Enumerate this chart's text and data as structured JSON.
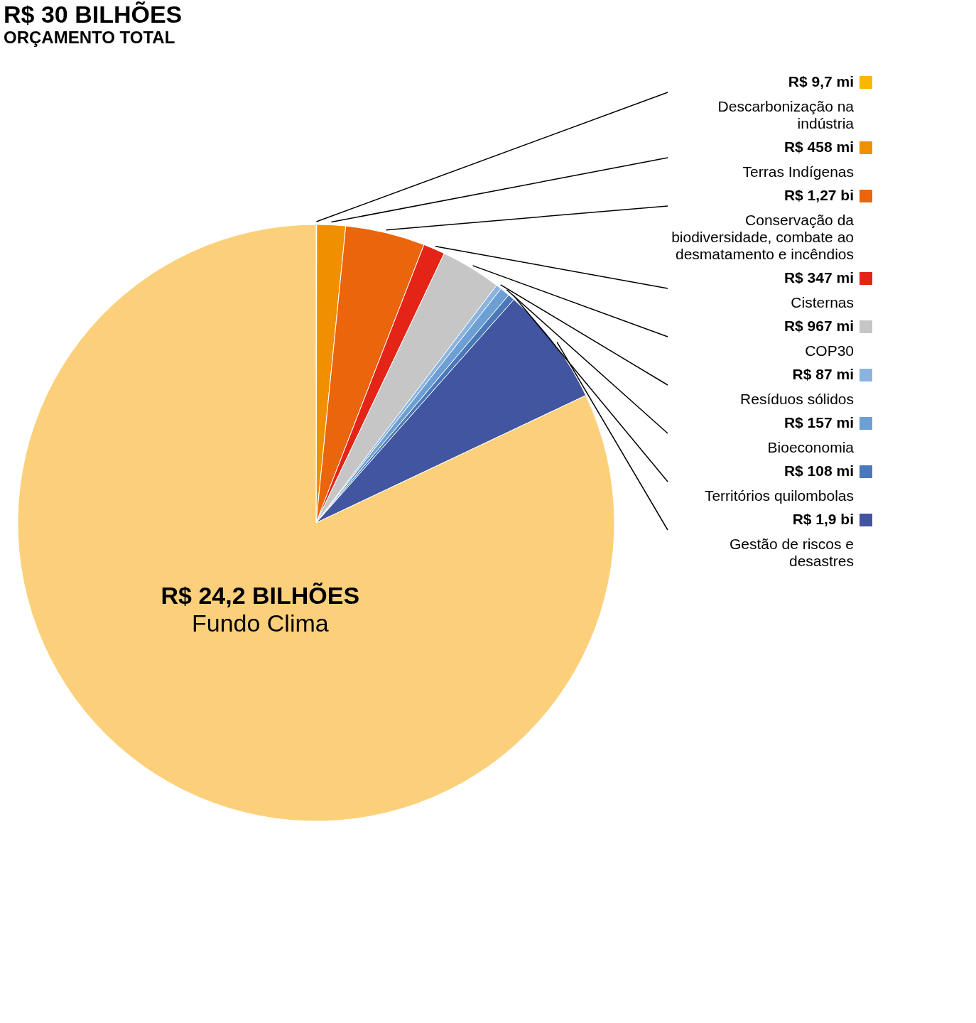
{
  "chart_data": {
    "type": "pie",
    "title": "R$ 30 BILHÕES",
    "subtitle": "ORÇAMENTO TOTAL",
    "categories": [
      "Descarbonização na indústria",
      "Terras Indígenas",
      "Conservação da biodiversidade, combate ao desmatamento e incêndios",
      "Cisternas",
      "COP30",
      "Resíduos sólidos",
      "Bioeconomia",
      "Territórios quilombolas",
      "Gestão de riscos e desastres",
      "Fundo Clima"
    ],
    "values": [
      9.7,
      458,
      1270,
      347,
      967,
      87,
      157,
      108,
      1900,
      24200
    ],
    "value_labels": [
      "R$ 9,7 mi",
      "R$ 458 mi",
      "R$ 1,27 bi",
      "R$ 347 mi",
      "R$ 967 mi",
      "R$ 87 mi",
      "R$ 157 mi",
      "R$ 108 mi",
      "R$ 1,9 bi",
      "R$ 24,2 BILHÕES"
    ],
    "legend": "right",
    "colors": [
      "#f9b800",
      "#f09000",
      "#ea650c",
      "#e32417",
      "#c6c6c6",
      "#8ab4e0",
      "#6e9fd4",
      "#4a78b8",
      "#4255a0",
      "#fcd07a"
    ]
  }
}
